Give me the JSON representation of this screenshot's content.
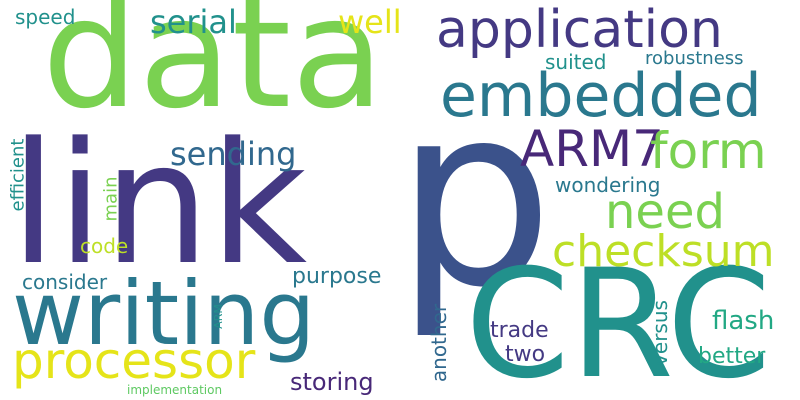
{
  "words": {
    "data": "data",
    "link": "link",
    "p": "p",
    "crc": "CRC",
    "writing": "writing",
    "application": "application",
    "embedded": "embedded",
    "processor": "processor",
    "arm7": "ARM7",
    "form": "form",
    "need": "need",
    "checksum": "checksum",
    "sending": "sending",
    "serial": "serial",
    "well": "well",
    "speed": "speed",
    "suited": "suited",
    "robustness": "robustness",
    "wondering": "wondering",
    "efficient": "efficient",
    "main": "main",
    "code": "code",
    "consider": "consider",
    "purpose": "purpose",
    "arm": "ARM",
    "another": "another",
    "trade": "trade",
    "two": "two",
    "versus": "versus",
    "flash": "flash",
    "better": "better",
    "storing": "storing",
    "implementation": "implementation"
  },
  "colors": {
    "lime": "#7ad151",
    "indigo": "#443983",
    "slate": "#3b528b",
    "teal": "#21918c",
    "cyan": "#2a788e",
    "seagreen": "#22a884",
    "yellow": "#e5e419",
    "olive": "#bddf26",
    "purple": "#482878",
    "deepblue": "#31688e",
    "green": "#5ec962"
  }
}
